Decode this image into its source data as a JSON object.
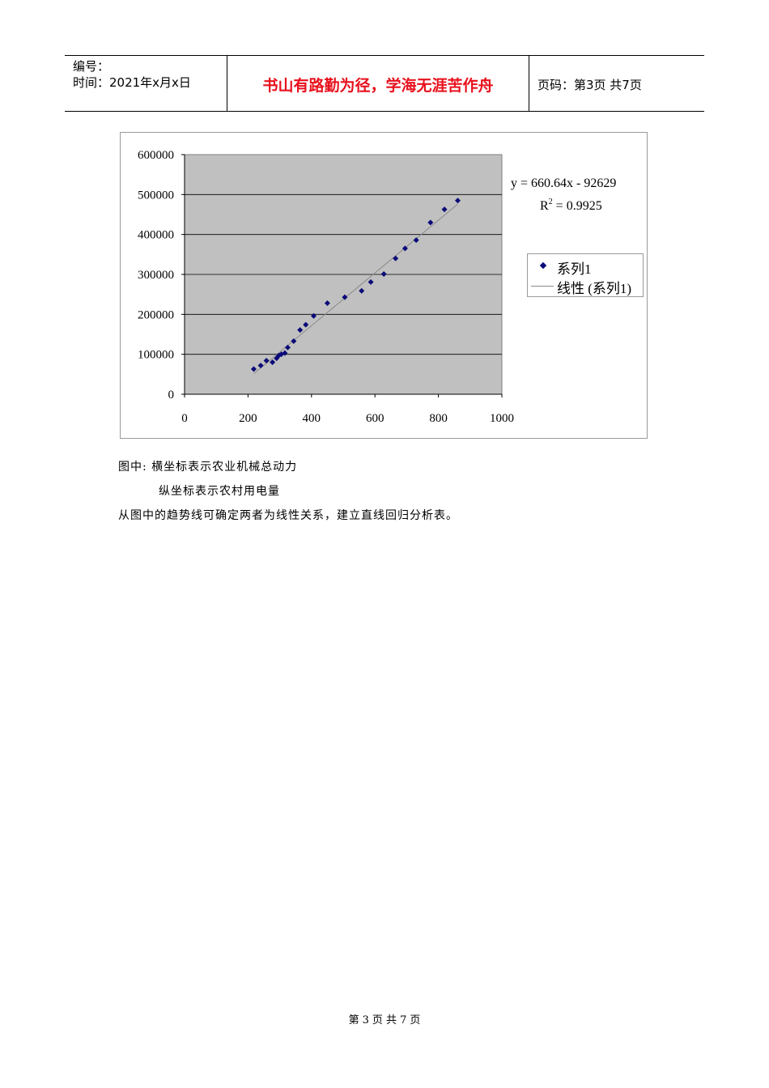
{
  "header": {
    "number_label": "编号：",
    "time_text": "时间：2021年x月x日",
    "motto": "书山有路勤为径，学海无涯苦作舟",
    "page_text": "页码：第3页  共7页"
  },
  "chart_data": {
    "type": "scatter",
    "title": "",
    "xlabel": "",
    "ylabel": "",
    "xlim": [
      0,
      1000
    ],
    "ylim": [
      0,
      600000
    ],
    "xticks": [
      "0",
      "200",
      "400",
      "600",
      "800",
      "1000"
    ],
    "yticks": [
      "0",
      "100000",
      "200000",
      "300000",
      "400000",
      "500000",
      "600000"
    ],
    "plot_background": "#c0c0c0",
    "marker_color": "#0a0a78",
    "trendline_color": "#8a8a8a",
    "grid": "horizontal",
    "legend_position": "right",
    "series": [
      {
        "name": "系列1",
        "points": [
          [
            218,
            63000
          ],
          [
            240,
            72000
          ],
          [
            258,
            84000
          ],
          [
            277,
            80000
          ],
          [
            290,
            90000
          ],
          [
            297,
            97000
          ],
          [
            305,
            100000
          ],
          [
            316,
            103000
          ],
          [
            325,
            117000
          ],
          [
            344,
            133000
          ],
          [
            364,
            161000
          ],
          [
            382,
            174000
          ],
          [
            407,
            196000
          ],
          [
            450,
            228000
          ],
          [
            505,
            243000
          ],
          [
            558,
            259000
          ],
          [
            587,
            281000
          ],
          [
            628,
            301000
          ],
          [
            665,
            340000
          ],
          [
            695,
            365000
          ],
          [
            730,
            386000
          ],
          [
            775,
            430000
          ],
          [
            819,
            463000
          ],
          [
            861,
            485000
          ]
        ]
      }
    ],
    "trendline": {
      "name": "线性 (系列1)",
      "slope": 660.64,
      "intercept": -92629,
      "x_range": [
        218,
        861
      ]
    },
    "equation_text": "y = 660.64x - 92629",
    "r2_prefix": "R",
    "r2_sup": "2",
    "r2_suffix": " = 0.9925"
  },
  "body": {
    "line1": "图中: 横坐标表示农业机械总动力",
    "line2": "纵坐标表示农村用电量",
    "line3": "从图中的趋势线可确定两者为线性关系，建立直线回归分析表。"
  },
  "footer": {
    "prefix": "第",
    "current": "3",
    "middle": "页  共",
    "total": "7",
    "suffix": "页"
  }
}
